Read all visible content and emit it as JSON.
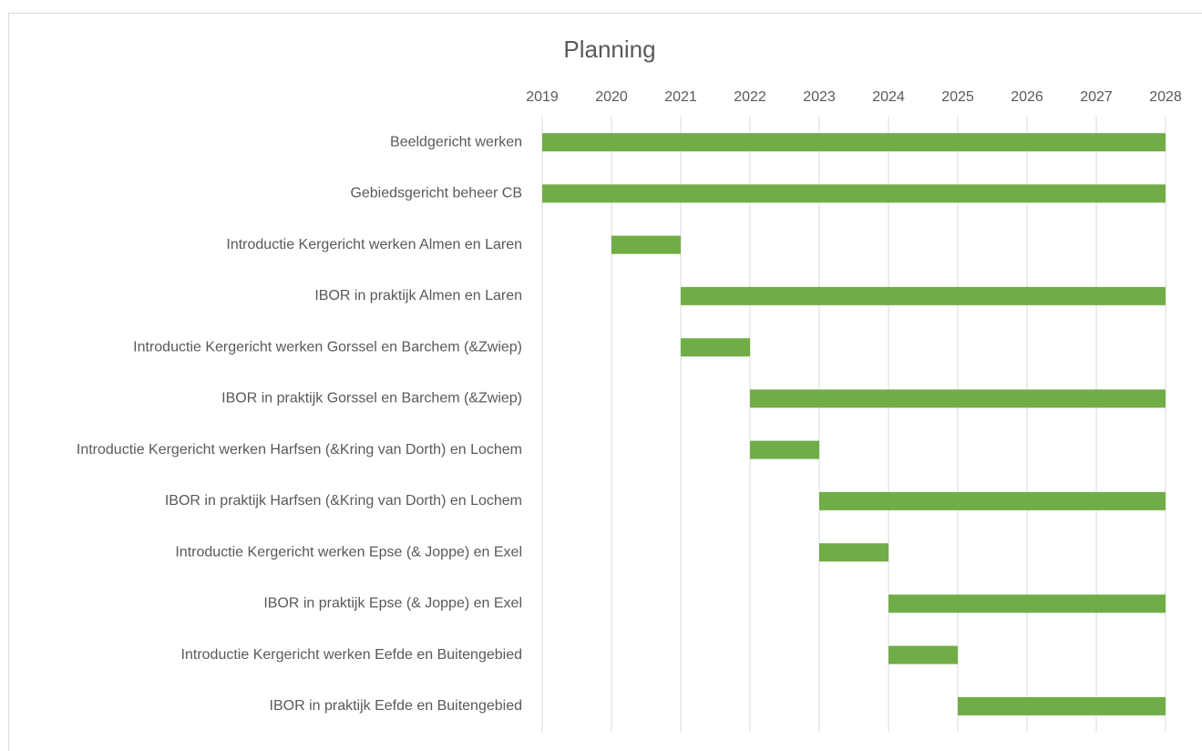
{
  "chart_data": {
    "type": "gantt",
    "title": "Planning",
    "categories": [
      "Beeldgericht werken",
      "Gebiedsgericht beheer CB",
      "Introductie Kergericht werken Almen en Laren",
      "IBOR in praktijk Almen en Laren",
      "Introductie Kergericht werken Gorssel en Barchem (&Zwiep)",
      "IBOR in praktijk Gorssel en  Barchem (&Zwiep)",
      "Introductie Kergericht werken Harfsen (&Kring van Dorth) en Lochem",
      "IBOR in praktijk Harfsen (&Kring van Dorth) en Lochem",
      "Introductie Kergericht werken Epse (& Joppe) en Exel",
      "IBOR in praktijk Epse (& Joppe) en Exel",
      "Introductie Kergericht werken Eefde en Buitengebied",
      "IBOR in praktijk Eefde en Buitengebied"
    ],
    "start": [
      2019,
      2019,
      2020,
      2021,
      2021,
      2022,
      2022,
      2023,
      2023,
      2024,
      2024,
      2025
    ],
    "end": [
      2028,
      2028,
      2021,
      2028,
      2022,
      2028,
      2023,
      2028,
      2024,
      2028,
      2025,
      2028
    ],
    "color": "#70ad47",
    "xlim": [
      2019,
      2028
    ],
    "xticks": [
      2019,
      2020,
      2021,
      2022,
      2023,
      2024,
      2025,
      2026,
      2027,
      2028
    ],
    "grid": true
  }
}
